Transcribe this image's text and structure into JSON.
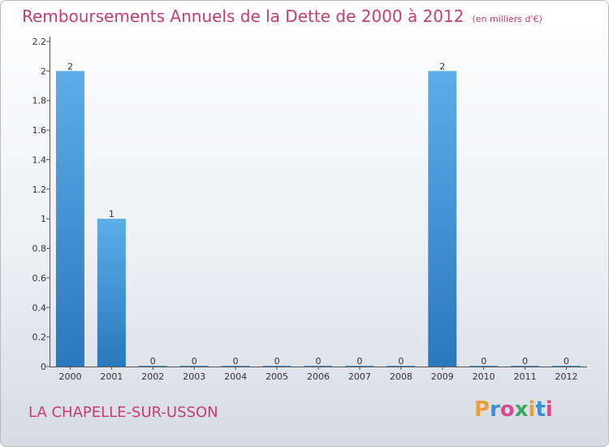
{
  "title": "Remboursements Annuels de la Dette de 2000 à 2012",
  "unit": "(en milliers d'€)",
  "city": "LA CHAPELLE-SUR-USSON",
  "logo": {
    "text": "Proxiti",
    "colors": [
      "#e8a13a",
      "#3a8fd8",
      "#d94a8c",
      "#3aa75a",
      "#e8a13a",
      "#3a8fd8",
      "#d94a8c"
    ]
  },
  "colors": {
    "bar_light": "#5dade8",
    "bar_dark": "#2a78bd",
    "title": "#c43d72"
  },
  "chart_data": {
    "type": "bar",
    "categories": [
      "2000",
      "2001",
      "2002",
      "2003",
      "2004",
      "2005",
      "2006",
      "2007",
      "2008",
      "2009",
      "2010",
      "2011",
      "2012"
    ],
    "values": [
      2,
      1,
      0,
      0,
      0,
      0,
      0,
      0,
      0,
      2,
      0,
      0,
      0
    ],
    "data_labels": [
      "2",
      "1",
      "0",
      "0",
      "0",
      "0",
      "0",
      "0",
      "0",
      "2",
      "0",
      "0",
      "0"
    ],
    "ylim": [
      0,
      2.2
    ],
    "yticks": [
      0,
      0.2,
      0.4,
      0.6,
      0.8,
      1,
      1.2,
      1.4,
      1.6,
      1.8,
      2,
      2.2
    ],
    "ytick_labels": [
      "0",
      "0.2",
      "0.4",
      "0.6",
      "0.8",
      "1",
      "1.2",
      "1.4",
      "1.6",
      "1.8",
      "2",
      "2.2"
    ],
    "title": "Remboursements Annuels de la Dette de 2000 à 2012",
    "xlabel": "",
    "ylabel": "",
    "grid": false
  }
}
